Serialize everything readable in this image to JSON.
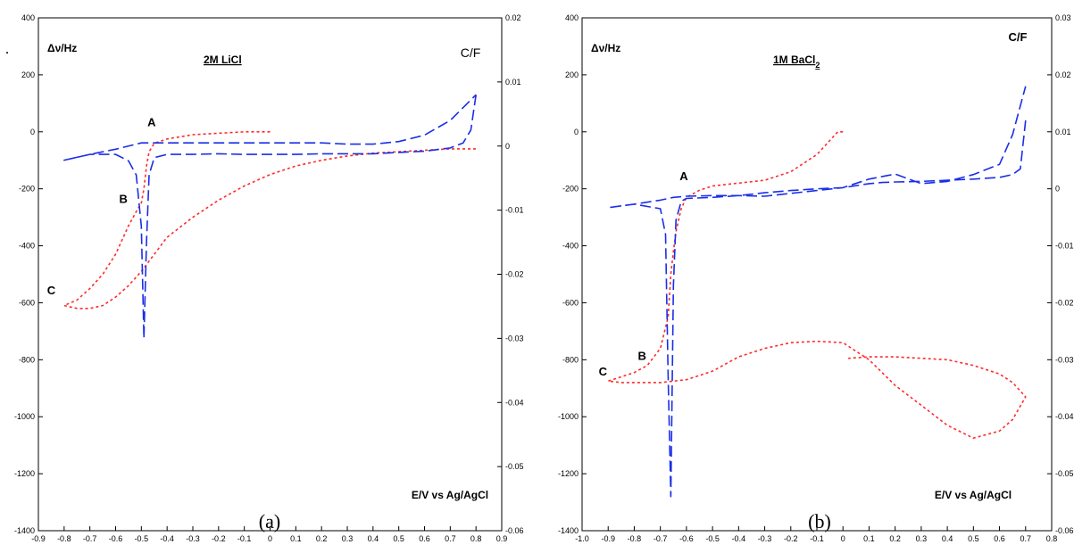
{
  "chart_data": [
    {
      "type": "line",
      "caption": "(a)",
      "title": "2M LiCl",
      "ylabel": "Δν/Hz",
      "xlabel": "E/V vs Ag/AgCl",
      "right_label": "C/F",
      "stray_mark": ".",
      "xlim": [
        -0.9,
        0.9
      ],
      "ylim": [
        -1400,
        400
      ],
      "y2lim": [
        -0.06,
        0.02
      ],
      "xticks": [
        "-0.9",
        "-0.8",
        "-0.7",
        "-0.6",
        "-0.5",
        "-0.4",
        "-0.3",
        "-0.2",
        "-0.1",
        "0",
        "0.1",
        "0.2",
        "0.3",
        "0.4",
        "0.5",
        "0.6",
        "0.7",
        "0.8",
        "0.9"
      ],
      "yticks": [
        "400",
        "200",
        "0",
        "-200",
        "-400",
        "-600",
        "-800",
        "-1000",
        "-1200",
        "-1400"
      ],
      "y2ticks": [
        "0.02",
        "0.01",
        "0",
        "-0.01",
        "-0.02",
        "-0.03",
        "-0.04",
        "-0.05",
        "-0.06"
      ],
      "point_labels": [
        {
          "text": "A",
          "x": -0.46,
          "y": 20
        },
        {
          "text": "B",
          "x": -0.57,
          "y": -250
        },
        {
          "text": "C",
          "x": -0.85,
          "y": -570
        }
      ],
      "series": [
        {
          "color": "#ff2a2a",
          "dash": "3,3",
          "axis": "left",
          "x": [
            0.0,
            -0.1,
            -0.2,
            -0.3,
            -0.4,
            -0.45,
            -0.47,
            -0.48,
            -0.49,
            -0.5,
            -0.52,
            -0.55,
            -0.6,
            -0.65,
            -0.7,
            -0.75,
            -0.8,
            -0.75,
            -0.7,
            -0.65,
            -0.6,
            -0.55,
            -0.5,
            -0.45,
            -0.4,
            -0.3,
            -0.2,
            -0.1,
            0.0,
            0.1,
            0.2,
            0.3,
            0.4,
            0.5,
            0.6,
            0.7,
            0.8
          ],
          "y": [
            0,
            0,
            -5,
            -10,
            -25,
            -40,
            -70,
            -120,
            -200,
            -250,
            -280,
            -330,
            -430,
            -500,
            -550,
            -590,
            -610,
            -620,
            -620,
            -610,
            -580,
            -540,
            -490,
            -430,
            -370,
            -300,
            -240,
            -190,
            -150,
            -120,
            -100,
            -85,
            -75,
            -70,
            -65,
            -60,
            -60
          ]
        },
        {
          "color": "#1a2ee8",
          "dash": "12,5",
          "axis": "right",
          "x": [
            0.8,
            0.78,
            0.75,
            0.7,
            0.6,
            0.5,
            0.4,
            0.3,
            0.2,
            0.1,
            0.0,
            -0.1,
            -0.2,
            -0.3,
            -0.4,
            -0.45,
            -0.47,
            -0.48,
            -0.49,
            -0.5,
            -0.52,
            -0.55,
            -0.6,
            -0.7,
            -0.8,
            -0.7,
            -0.6,
            -0.5,
            -0.4,
            -0.3,
            -0.2,
            -0.1,
            0.0,
            0.1,
            0.2,
            0.3,
            0.4,
            0.5,
            0.6,
            0.7,
            0.75,
            0.8
          ],
          "y": [
            0.008,
            0.0025,
            0.0005,
            -0.0003,
            -0.0008,
            -0.001,
            -0.0012,
            -0.0012,
            -0.0012,
            -0.0013,
            -0.0013,
            -0.0013,
            -0.0012,
            -0.0013,
            -0.0013,
            -0.0018,
            -0.0045,
            -0.015,
            -0.03,
            -0.0125,
            -0.0045,
            -0.0023,
            -0.0013,
            -0.0013,
            -0.0022,
            -0.0013,
            -0.0005,
            0.0005,
            0.0005,
            0.0005,
            0.0005,
            0.0005,
            0.0005,
            0.0005,
            0.0005,
            0.0003,
            0.0003,
            0.0007,
            0.0017,
            0.004,
            0.006,
            0.008
          ]
        }
      ]
    },
    {
      "type": "line",
      "caption": "(b)",
      "title": "1M BaCl",
      "title_sub": "2",
      "ylabel": "Δν/Hz",
      "xlabel": "E/V vs Ag/AgCl",
      "right_label": "C/F",
      "xlim": [
        -1.0,
        0.8
      ],
      "ylim": [
        -1400,
        400
      ],
      "y2lim": [
        -0.06,
        0.03
      ],
      "xticks": [
        "-1.0",
        "-0.9",
        "-0.8",
        "-0.7",
        "-0.6",
        "-0.5",
        "-0.4",
        "-0.3",
        "-0.2",
        "-0.1",
        "0",
        "0.1",
        "0.2",
        "0.3",
        "0.4",
        "0.5",
        "0.6",
        "0.7",
        "0.8"
      ],
      "yticks": [
        "400",
        "200",
        "0",
        "-200",
        "-400",
        "-600",
        "-800",
        "-1000",
        "-1200",
        "-1400"
      ],
      "y2ticks": [
        "0.03",
        "0.02",
        "0.01",
        "0",
        "-0.01",
        "-0.02",
        "-0.03",
        "-0.04",
        "-0.05",
        "-0.06"
      ],
      "point_labels": [
        {
          "text": "A",
          "x": -0.61,
          "y": -170
        },
        {
          "text": "B",
          "x": -0.77,
          "y": -800
        },
        {
          "text": "C",
          "x": -0.92,
          "y": -855
        }
      ],
      "series": [
        {
          "color": "#ff2a2a",
          "dash": "3,3",
          "axis": "left",
          "x": [
            0.0,
            -0.02,
            -0.05,
            -0.1,
            -0.2,
            -0.3,
            -0.4,
            -0.5,
            -0.55,
            -0.6,
            -0.62,
            -0.64,
            -0.65,
            -0.66,
            -0.67,
            -0.7,
            -0.75,
            -0.8,
            -0.85,
            -0.9,
            -0.85,
            -0.8,
            -0.7,
            -0.6,
            -0.5,
            -0.4,
            -0.3,
            -0.2,
            -0.1,
            0.0,
            0.05,
            0.1,
            0.2,
            0.3,
            0.4,
            0.5,
            0.6,
            0.65,
            0.7,
            0.65,
            0.6,
            0.5,
            0.4,
            0.3,
            0.2,
            0.1,
            0.02
          ],
          "y": [
            0,
            0,
            -30,
            -80,
            -140,
            -170,
            -180,
            -190,
            -205,
            -230,
            -270,
            -350,
            -420,
            -500,
            -650,
            -760,
            -820,
            -845,
            -860,
            -875,
            -880,
            -880,
            -880,
            -870,
            -840,
            -790,
            -760,
            -740,
            -735,
            -740,
            -770,
            -800,
            -890,
            -960,
            -1030,
            -1075,
            -1050,
            -1010,
            -930,
            -880,
            -850,
            -820,
            -800,
            -795,
            -790,
            -790,
            -795
          ]
        },
        {
          "color": "#1a2ee8",
          "dash": "12,5",
          "axis": "right",
          "x": [
            0.7,
            0.68,
            0.65,
            0.6,
            0.5,
            0.4,
            0.3,
            0.2,
            0.15,
            0.1,
            0.0,
            -0.1,
            -0.2,
            -0.3,
            -0.4,
            -0.5,
            -0.6,
            -0.62,
            -0.64,
            -0.65,
            -0.66,
            -0.67,
            -0.68,
            -0.7,
            -0.8,
            -0.9,
            -0.8,
            -0.7,
            -0.65,
            -0.6,
            -0.5,
            -0.4,
            -0.3,
            -0.2,
            -0.1,
            0.0,
            0.1,
            0.2,
            0.3,
            0.4,
            0.5,
            0.6,
            0.65,
            0.7
          ],
          "y": [
            0.012,
            0.0035,
            0.0025,
            0.002,
            0.0017,
            0.0015,
            0.0013,
            0.0012,
            0.0011,
            0.0009,
            0.0002,
            0.0,
            -0.0003,
            -0.0007,
            -0.0012,
            -0.0015,
            -0.0017,
            -0.0022,
            -0.0055,
            -0.017,
            -0.054,
            -0.033,
            -0.008,
            -0.0035,
            -0.0027,
            -0.0033,
            -0.0027,
            -0.002,
            -0.0015,
            -0.0013,
            -0.0012,
            -0.0012,
            -0.0013,
            -0.0008,
            -0.0003,
            0.0002,
            0.0017,
            0.0026,
            0.0009,
            0.0013,
            0.0025,
            0.0043,
            0.0095,
            0.018
          ]
        }
      ]
    }
  ]
}
